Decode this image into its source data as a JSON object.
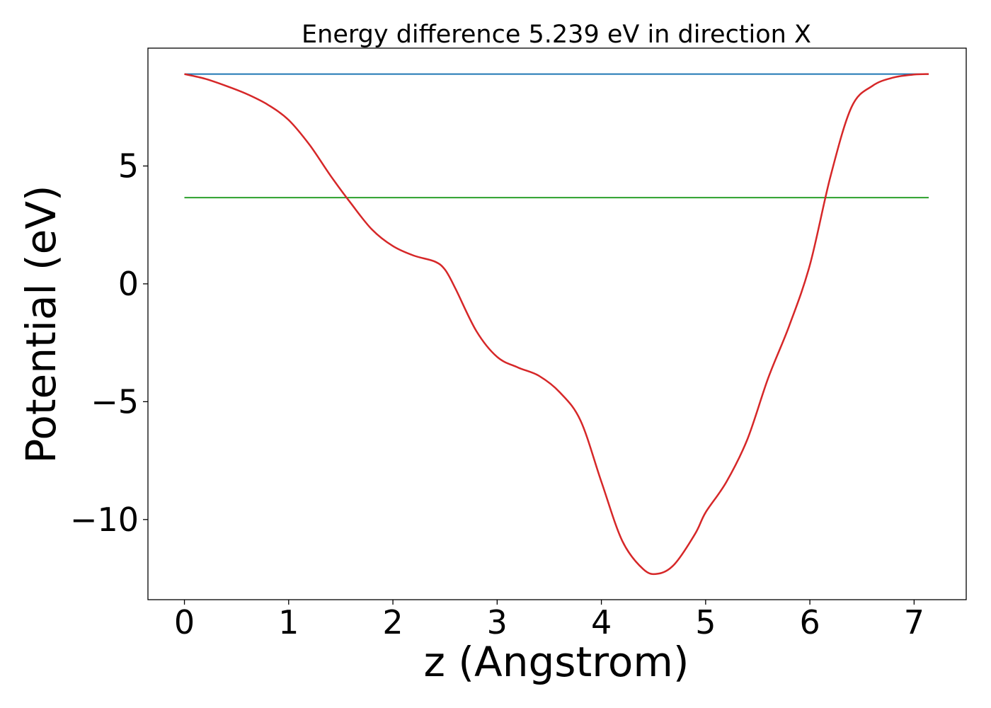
{
  "chart_data": {
    "type": "line",
    "title": "Energy difference 5.239 eV in direction X",
    "xlabel": "z (Angstrom)",
    "ylabel": "Potential (eV)",
    "xlim": [
      -0.35,
      7.5
    ],
    "ylim": [
      -13.4,
      10.0
    ],
    "xticks": [
      {
        "value": 0,
        "label": "0"
      },
      {
        "value": 1,
        "label": "1"
      },
      {
        "value": 2,
        "label": "2"
      },
      {
        "value": 3,
        "label": "3"
      },
      {
        "value": 4,
        "label": "4"
      },
      {
        "value": 5,
        "label": "5"
      },
      {
        "value": 6,
        "label": "6"
      },
      {
        "value": 7,
        "label": "7"
      }
    ],
    "yticks": [
      {
        "value": -10,
        "label": "−10"
      },
      {
        "value": -5,
        "label": "−5"
      },
      {
        "value": 0,
        "label": "0"
      },
      {
        "value": 5,
        "label": "5"
      }
    ],
    "grid": false,
    "legend": false,
    "series": [
      {
        "color": "#1f77b4",
        "x": [
          0,
          7.14
        ],
        "y": [
          8.9,
          8.9
        ]
      },
      {
        "color": "#2ca02c",
        "x": [
          0,
          7.14
        ],
        "y": [
          3.66,
          3.66
        ]
      },
      {
        "color": "#d62728",
        "x": [
          0.0,
          0.2,
          0.4,
          0.6,
          0.8,
          1.0,
          1.2,
          1.4,
          1.6,
          1.8,
          2.0,
          2.2,
          2.4,
          2.5,
          2.6,
          2.8,
          3.0,
          3.2,
          3.4,
          3.6,
          3.8,
          4.0,
          4.2,
          4.4,
          4.54,
          4.7,
          4.9,
          5.0,
          5.2,
          5.4,
          5.6,
          5.8,
          6.0,
          6.2,
          6.4,
          6.6,
          6.8,
          7.0,
          7.14
        ],
        "y": [
          8.9,
          8.7,
          8.4,
          8.05,
          7.6,
          6.95,
          5.9,
          4.6,
          3.4,
          2.3,
          1.6,
          1.2,
          0.95,
          0.6,
          -0.2,
          -2.0,
          -3.1,
          -3.55,
          -3.9,
          -4.6,
          -5.8,
          -8.4,
          -10.9,
          -12.1,
          -12.3,
          -11.9,
          -10.6,
          -9.7,
          -8.4,
          -6.6,
          -4.0,
          -1.8,
          0.8,
          4.6,
          7.5,
          8.4,
          8.75,
          8.88,
          8.9
        ]
      }
    ]
  }
}
